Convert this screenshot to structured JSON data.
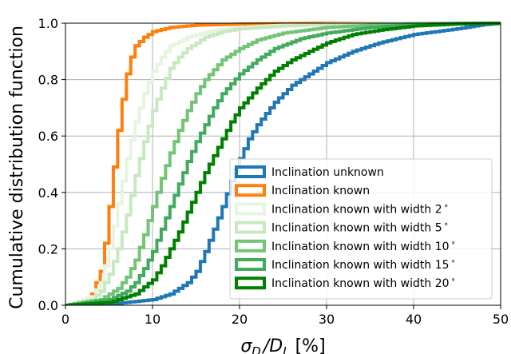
{
  "chart_data": {
    "type": "line",
    "xlabel": "σ_{D_l}/D_L [%]",
    "xlabel_parts": {
      "sigma": "σ",
      "sub": "D",
      "subsub": "l",
      "rest": "/D",
      "rest_sub": "L",
      "unit": " [%]"
    },
    "ylabel": "Cumulative distribution function",
    "xlim": [
      0,
      50
    ],
    "ylim": [
      0,
      1
    ],
    "xticks": [
      "0",
      "10",
      "20",
      "30",
      "40",
      "50"
    ],
    "yticks": [
      "0.0",
      "0.2",
      "0.4",
      "0.6",
      "0.8",
      "1.0"
    ],
    "grid": true,
    "legend_position": "lower-right",
    "series": [
      {
        "name": "Inclination unknown",
        "color": "#1f77b4",
        "x": [
          0,
          5,
          10,
          12,
          14,
          15,
          16,
          17,
          18,
          19,
          20,
          21,
          22,
          23,
          24,
          25,
          26,
          27,
          28,
          30,
          33,
          36,
          40,
          45,
          48,
          50
        ],
        "y": [
          0,
          0.004,
          0.02,
          0.04,
          0.08,
          0.12,
          0.19,
          0.27,
          0.35,
          0.44,
          0.52,
          0.59,
          0.64,
          0.68,
          0.72,
          0.75,
          0.78,
          0.8,
          0.82,
          0.86,
          0.9,
          0.93,
          0.96,
          0.98,
          0.995,
          1.0
        ]
      },
      {
        "name": "Inclination known",
        "color": "#ff7f0e",
        "x": [
          0,
          2,
          3,
          4,
          4.5,
          5,
          5.5,
          6,
          6.5,
          7,
          7.5,
          8,
          9,
          10,
          12,
          15,
          20,
          25,
          30,
          50
        ],
        "y": [
          0,
          0.01,
          0.04,
          0.12,
          0.22,
          0.35,
          0.49,
          0.62,
          0.73,
          0.82,
          0.88,
          0.92,
          0.95,
          0.97,
          0.985,
          0.993,
          0.997,
          0.999,
          1.0,
          1.0
        ]
      },
      {
        "name": "Inclination known with width 2$^\\circ$",
        "label_text": "Inclination known with width 2",
        "color": "#e5f5e0",
        "x": [
          0,
          3,
          4,
          5,
          6,
          7,
          8,
          9,
          10,
          11,
          12,
          14,
          17,
          20,
          25,
          30,
          35,
          40,
          50
        ],
        "y": [
          0,
          0.03,
          0.08,
          0.2,
          0.36,
          0.52,
          0.65,
          0.75,
          0.83,
          0.88,
          0.92,
          0.95,
          0.975,
          0.985,
          0.993,
          0.997,
          0.999,
          1.0,
          1.0
        ]
      },
      {
        "name": "Inclination known with width 5$^\\circ$",
        "label_text": "Inclination known with width 5",
        "color": "#c7e9c0",
        "x": [
          0,
          3,
          4,
          5,
          6,
          7,
          8,
          9,
          10,
          11,
          12,
          13,
          14,
          16,
          18,
          20,
          25,
          30,
          40,
          50
        ],
        "y": [
          0,
          0.02,
          0.05,
          0.11,
          0.2,
          0.32,
          0.46,
          0.58,
          0.69,
          0.77,
          0.84,
          0.88,
          0.91,
          0.95,
          0.97,
          0.98,
          0.99,
          0.996,
          1.0,
          1.0
        ]
      },
      {
        "name": "Inclination known with width 10$^\\circ$",
        "label_text": "Inclination known with width 10",
        "color": "#74c476",
        "x": [
          0,
          4,
          6,
          7,
          8,
          9,
          10,
          11,
          12,
          13,
          14,
          15,
          16,
          18,
          20,
          22,
          25,
          30,
          35,
          40,
          45,
          50
        ],
        "y": [
          0,
          0.02,
          0.06,
          0.1,
          0.16,
          0.25,
          0.35,
          0.45,
          0.54,
          0.62,
          0.69,
          0.75,
          0.8,
          0.87,
          0.91,
          0.94,
          0.965,
          0.985,
          0.993,
          0.998,
          1.0,
          1.0
        ]
      },
      {
        "name": "Inclination known with width 15$^\\circ$",
        "label_text": "Inclination known with width 15",
        "color": "#41ab5d",
        "x": [
          0,
          5,
          7,
          8,
          9,
          10,
          11,
          12,
          13,
          14,
          15,
          16,
          17,
          18,
          20,
          22,
          24,
          27,
          30,
          35,
          40,
          45,
          50
        ],
        "y": [
          0,
          0.02,
          0.05,
          0.08,
          0.13,
          0.19,
          0.27,
          0.35,
          0.43,
          0.51,
          0.58,
          0.64,
          0.7,
          0.75,
          0.82,
          0.87,
          0.91,
          0.945,
          0.965,
          0.985,
          0.995,
          0.999,
          1.0
        ]
      },
      {
        "name": "Inclination known with width 20$^\\circ$",
        "label_text": "Inclination known with width 20",
        "color": "#008000",
        "x": [
          0,
          5,
          8,
          10,
          11,
          12,
          13,
          14,
          15,
          16,
          17,
          18,
          19,
          20,
          22,
          24,
          26,
          28,
          30,
          33,
          36,
          40,
          45,
          50
        ],
        "y": [
          0,
          0.01,
          0.04,
          0.09,
          0.14,
          0.2,
          0.26,
          0.33,
          0.4,
          0.47,
          0.53,
          0.59,
          0.65,
          0.7,
          0.77,
          0.83,
          0.87,
          0.9,
          0.93,
          0.96,
          0.975,
          0.99,
          0.997,
          1.0
        ]
      }
    ]
  }
}
